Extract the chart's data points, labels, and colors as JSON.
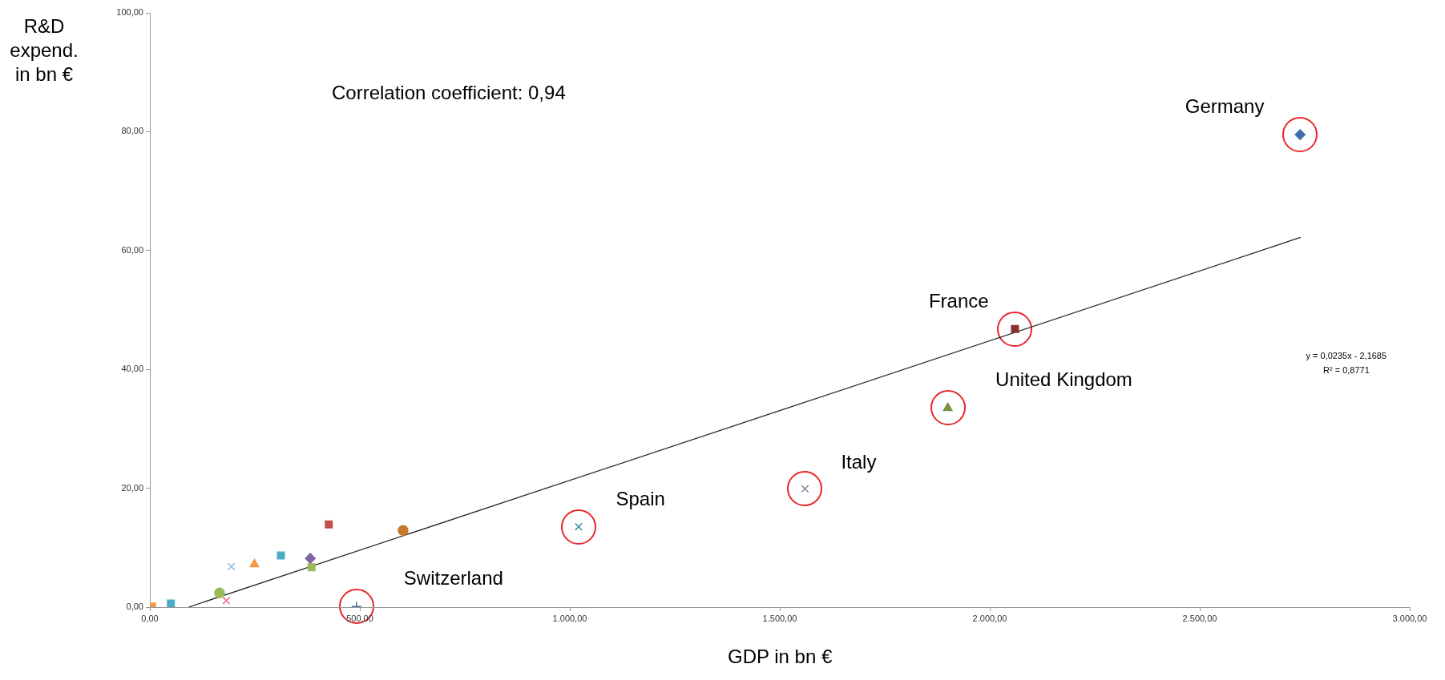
{
  "chart_data": {
    "type": "scatter",
    "xlabel": "GDP in bn €",
    "ylabel": "R&D expend. in bn €",
    "xlim": [
      0,
      3000
    ],
    "xticks": [
      {
        "value": 0,
        "label": "0,00"
      },
      {
        "value": 500,
        "label": "500,00"
      },
      {
        "value": 1000,
        "label": "1.000,00"
      },
      {
        "value": 1500,
        "label": "1.500,00"
      },
      {
        "value": 2000,
        "label": "2.000,00"
      },
      {
        "value": 2500,
        "label": "2.500,00"
      },
      {
        "value": 3000,
        "label": "3.000,00"
      }
    ],
    "ylim": [
      0,
      100
    ],
    "yticks": [
      {
        "value": 0,
        "label": "0,00"
      },
      {
        "value": 20,
        "label": "20,00"
      },
      {
        "value": 40,
        "label": "40,00"
      },
      {
        "value": 60,
        "label": "60,00"
      },
      {
        "value": 80,
        "label": "80,00"
      },
      {
        "value": 100,
        "label": "100,00"
      }
    ],
    "grid": false,
    "legend": false,
    "series": [
      {
        "type": "scatter",
        "x": [
          2739
        ],
        "values": [
          79.5
        ],
        "color": "#3f6fa8",
        "marker": "diamond"
      },
      {
        "type": "scatter",
        "x": [
          2060
        ],
        "values": [
          46.8
        ],
        "color": "#8b2e2e",
        "marker": "square"
      },
      {
        "type": "scatter",
        "x": [
          1900
        ],
        "values": [
          33.5
        ],
        "color": "#77933c",
        "marker": "triangle"
      },
      {
        "type": "scatter",
        "x": [
          1560
        ],
        "values": [
          19.9
        ],
        "color": "#7f8fa6",
        "marker": "cross"
      },
      {
        "type": "scatter",
        "x": [
          1021
        ],
        "values": [
          13.5
        ],
        "color": "#31859c",
        "marker": "cross"
      },
      {
        "type": "scatter",
        "x": [
          492
        ],
        "values": [
          0.1
        ],
        "color": "#4f6fa0",
        "marker": "plus"
      },
      {
        "type": "scatter",
        "x": [
          5
        ],
        "values": [
          0.1
        ],
        "color": "#f79646",
        "marker": "square"
      },
      {
        "type": "scatter",
        "x": [
          50
        ],
        "values": [
          0.6
        ],
        "color": "#4bacc6",
        "marker": "square"
      },
      {
        "type": "scatter",
        "x": [
          166
        ],
        "values": [
          2.4
        ],
        "color": "#9bbb59",
        "marker": "circle"
      },
      {
        "type": "scatter",
        "x": [
          182
        ],
        "values": [
          1.1
        ],
        "color": "#e46c8a",
        "marker": "cross"
      },
      {
        "type": "scatter",
        "x": [
          194
        ],
        "values": [
          6.8
        ],
        "color": "#93b8dd",
        "marker": "cross"
      },
      {
        "type": "scatter",
        "x": [
          249
        ],
        "values": [
          7.2
        ],
        "color": "#f79646",
        "marker": "triangle"
      },
      {
        "type": "scatter",
        "x": [
          312
        ],
        "values": [
          8.7
        ],
        "color": "#4bacc6",
        "marker": "square"
      },
      {
        "type": "scatter",
        "x": [
          382
        ],
        "values": [
          8.2
        ],
        "color": "#8064a2",
        "marker": "diamond"
      },
      {
        "type": "scatter",
        "x": [
          385
        ],
        "values": [
          6.7
        ],
        "color": "#9bbb59",
        "marker": "square"
      },
      {
        "type": "scatter",
        "x": [
          426
        ],
        "values": [
          13.9
        ],
        "color": "#c0504d",
        "marker": "square"
      },
      {
        "type": "scatter",
        "x": [
          603
        ],
        "values": [
          12.9
        ],
        "color": "#c77a2e",
        "marker": "circle"
      },
      {
        "type": "line",
        "x": [
          92.3,
          2740
        ],
        "values": [
          0,
          62.2
        ],
        "color": "#222222",
        "marker": "none"
      }
    ],
    "annotations": [
      {
        "text": "Germany",
        "x": 2739,
        "y": 79.5
      },
      {
        "text": "France",
        "x": 2060,
        "y": 46.8
      },
      {
        "text": "United Kingdom",
        "x": 1900,
        "y": 33.5
      },
      {
        "text": "Italy",
        "x": 1560,
        "y": 19.9
      },
      {
        "text": "Spain",
        "x": 1021,
        "y": 13.5
      },
      {
        "text": "Switzerland",
        "x": 492,
        "y": 0.1
      },
      "Correlation coefficient: 0,94",
      "y = 0,0235x - 2,1685",
      "R² = 0,8771"
    ]
  }
}
